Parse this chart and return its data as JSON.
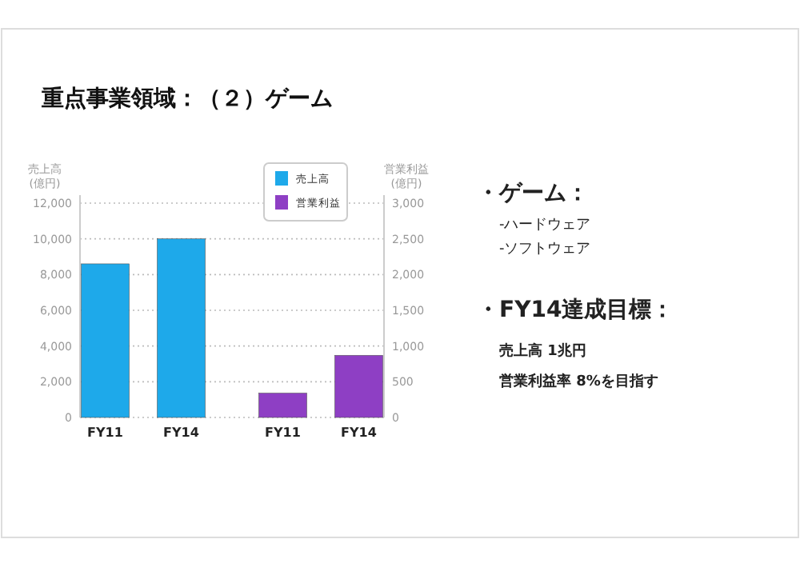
{
  "chart_data": {
    "type": "bar",
    "title": "重点事業領域：（２）ゲーム",
    "ylabel": "売上高\n(億円)",
    "y2label": "営業利益\n(億円)",
    "categories": [
      "FY11",
      "FY14",
      "FY11",
      "FY14"
    ],
    "series": [
      {
        "name": "売上高",
        "color": "#1ea9ea",
        "values": [
          8600,
          10000,
          null,
          null
        ]
      },
      {
        "name": "営業利益",
        "color": "#8e3fc4",
        "axis": "y2",
        "values": [
          null,
          null,
          340,
          870
        ]
      }
    ],
    "ylim": [
      0,
      12000
    ],
    "yticks": [
      0,
      {
        "value": 2000,
        "label": "2,000"
      },
      {
        "value": 4000,
        "label": "4,000"
      },
      {
        "value": 6000,
        "label": "6,000"
      },
      {
        "value": 8000,
        "label": "8,000"
      },
      {
        "value": 10000,
        "label": "10,000"
      },
      {
        "value": 12000,
        "label": "12,000"
      }
    ],
    "y2lim": [
      0,
      3000
    ],
    "y2ticks": [
      0,
      500,
      {
        "value": 1000,
        "label": "1,000"
      },
      {
        "value": 1500,
        "label": "1,500"
      },
      {
        "value": 2000,
        "label": "2,000"
      },
      {
        "value": 2500,
        "label": "2,500"
      },
      {
        "value": 3000,
        "label": "3,000"
      }
    ],
    "grid": "y",
    "legend": "top right",
    "annotations": [
      "・ゲーム：",
      "-ハードウェア",
      "-ソフトウェア",
      "・FY14達成目標：",
      "売上高 1兆円",
      "営業利益率 8%を目指す"
    ]
  }
}
